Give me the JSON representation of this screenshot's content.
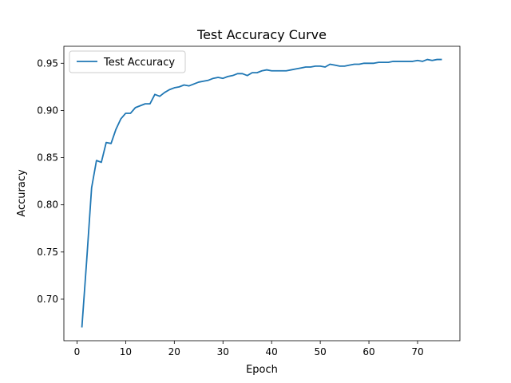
{
  "chart_data": {
    "type": "line",
    "title": "Test Accuracy Curve",
    "xlabel": "Epoch",
    "ylabel": "Accuracy",
    "xlim": [
      -2.7,
      78.7
    ],
    "ylim": [
      0.656,
      0.968
    ],
    "xticks": [
      0,
      10,
      20,
      30,
      40,
      50,
      60,
      70
    ],
    "yticks": [
      0.7,
      0.75,
      0.8,
      0.85,
      0.9,
      0.95
    ],
    "xtick_labels": [
      "0",
      "10",
      "20",
      "30",
      "40",
      "50",
      "60",
      "70"
    ],
    "ytick_labels": [
      "0.70",
      "0.75",
      "0.80",
      "0.85",
      "0.90",
      "0.95"
    ],
    "grid": false,
    "legend": {
      "position": "top-left",
      "entries": [
        "Test Accuracy"
      ]
    },
    "colors": {
      "series": "#1f77b4",
      "axes": "#000000"
    },
    "series": [
      {
        "name": "Test Accuracy",
        "x": [
          1,
          2,
          3,
          4,
          5,
          6,
          7,
          8,
          9,
          10,
          11,
          12,
          13,
          14,
          15,
          16,
          17,
          18,
          19,
          20,
          21,
          22,
          23,
          24,
          25,
          26,
          27,
          28,
          29,
          30,
          31,
          32,
          33,
          34,
          35,
          36,
          37,
          38,
          39,
          40,
          41,
          42,
          43,
          44,
          45,
          46,
          47,
          48,
          49,
          50,
          51,
          52,
          53,
          54,
          55,
          56,
          57,
          58,
          59,
          60,
          61,
          62,
          63,
          64,
          65,
          66,
          67,
          68,
          69,
          70,
          71,
          72,
          73,
          74,
          75
        ],
        "values": [
          0.67,
          0.742,
          0.818,
          0.847,
          0.845,
          0.866,
          0.865,
          0.88,
          0.891,
          0.897,
          0.897,
          0.903,
          0.905,
          0.907,
          0.907,
          0.917,
          0.915,
          0.919,
          0.922,
          0.924,
          0.925,
          0.927,
          0.926,
          0.928,
          0.93,
          0.931,
          0.932,
          0.934,
          0.935,
          0.934,
          0.936,
          0.937,
          0.939,
          0.939,
          0.937,
          0.94,
          0.94,
          0.942,
          0.943,
          0.942,
          0.942,
          0.942,
          0.942,
          0.943,
          0.944,
          0.945,
          0.946,
          0.946,
          0.947,
          0.947,
          0.946,
          0.949,
          0.948,
          0.947,
          0.947,
          0.948,
          0.949,
          0.949,
          0.95,
          0.95,
          0.95,
          0.951,
          0.951,
          0.951,
          0.952,
          0.952,
          0.952,
          0.952,
          0.952,
          0.953,
          0.952,
          0.954,
          0.953,
          0.954,
          0.954
        ]
      }
    ]
  }
}
